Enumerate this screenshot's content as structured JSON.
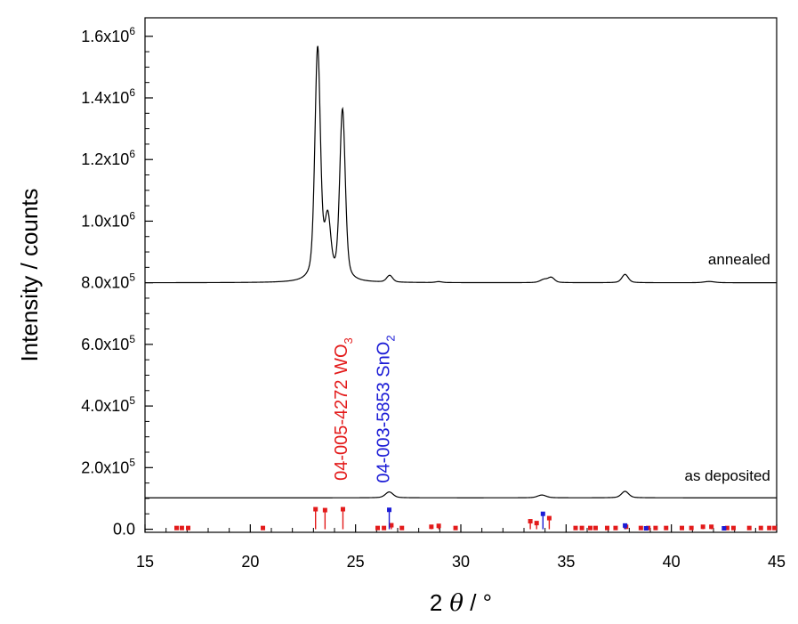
{
  "chart_data": {
    "type": "line",
    "xlabel_prefix": "2",
    "xlabel_symbol": "θ",
    "xlabel_suffix": " / °",
    "ylabel": "Intensity / counts",
    "xlim": [
      15,
      45
    ],
    "ylim": [
      -10000,
      1660000
    ],
    "x_ticks": [
      15,
      20,
      25,
      30,
      35,
      40,
      45
    ],
    "y_ticks": [
      {
        "value": 0,
        "label": "0.0"
      },
      {
        "value": 200000,
        "mant": "2.0x10",
        "exp": "5"
      },
      {
        "value": 400000,
        "mant": "4.0x10",
        "exp": "5"
      },
      {
        "value": 600000,
        "mant": "6.0x10",
        "exp": "5"
      },
      {
        "value": 800000,
        "mant": "8.0x10",
        "exp": "5"
      },
      {
        "value": 1000000,
        "mant": "1.0x10",
        "exp": "6"
      },
      {
        "value": 1200000,
        "mant": "1.2x10",
        "exp": "6"
      },
      {
        "value": 1400000,
        "mant": "1.4x10",
        "exp": "6"
      },
      {
        "value": 1600000,
        "mant": "1.6x10",
        "exp": "6"
      }
    ],
    "series": [
      {
        "name": "annealed",
        "color": "#000000",
        "baseline": 800000,
        "label_x": 44.7,
        "label_y": 860000,
        "peaks": [
          {
            "x": 23.2,
            "height": 755000,
            "width": 0.13
          },
          {
            "x": 23.68,
            "height": 190000,
            "width": 0.14
          },
          {
            "x": 24.38,
            "height": 555000,
            "width": 0.13
          },
          {
            "x": 26.62,
            "height": 22000,
            "width": 0.14
          },
          {
            "x": 28.95,
            "height": 3000,
            "width": 0.15
          },
          {
            "x": 33.95,
            "height": 10000,
            "width": 0.18
          },
          {
            "x": 34.3,
            "height": 16000,
            "width": 0.15
          },
          {
            "x": 37.8,
            "height": 27000,
            "width": 0.15
          },
          {
            "x": 41.8,
            "height": 4000,
            "width": 0.25
          }
        ]
      },
      {
        "name": "as deposited",
        "color": "#000000",
        "baseline": 102000,
        "label_x": 44.7,
        "label_y": 158000,
        "peaks": [
          {
            "x": 26.6,
            "height": 19000,
            "width": 0.18
          },
          {
            "x": 33.85,
            "height": 9000,
            "width": 0.2
          },
          {
            "x": 37.8,
            "height": 21000,
            "width": 0.17
          }
        ]
      }
    ],
    "references": [
      {
        "label_main": "04-005-4272 WO",
        "label_sub": "3",
        "color": "#e31b1b",
        "label_x": 24.6,
        "label_y": 390000,
        "sticks": [
          {
            "x": 16.5,
            "y": 4000
          },
          {
            "x": 16.75,
            "y": 4000
          },
          {
            "x": 17.05,
            "y": 4000
          },
          {
            "x": 20.6,
            "y": 4000
          },
          {
            "x": 23.1,
            "y": 65000
          },
          {
            "x": 23.55,
            "y": 62000
          },
          {
            "x": 24.4,
            "y": 65000
          },
          {
            "x": 26.05,
            "y": 4000
          },
          {
            "x": 26.35,
            "y": 4000
          },
          {
            "x": 26.7,
            "y": 13000
          },
          {
            "x": 27.2,
            "y": 4000
          },
          {
            "x": 28.6,
            "y": 8000
          },
          {
            "x": 28.95,
            "y": 11000
          },
          {
            "x": 29.75,
            "y": 4000
          },
          {
            "x": 33.3,
            "y": 26000
          },
          {
            "x": 33.6,
            "y": 20000
          },
          {
            "x": 34.2,
            "y": 36000
          },
          {
            "x": 35.45,
            "y": 4000
          },
          {
            "x": 35.75,
            "y": 4000
          },
          {
            "x": 36.15,
            "y": 4000
          },
          {
            "x": 36.4,
            "y": 4000
          },
          {
            "x": 36.95,
            "y": 4000
          },
          {
            "x": 37.35,
            "y": 4000
          },
          {
            "x": 37.85,
            "y": 8000
          },
          {
            "x": 38.55,
            "y": 4000
          },
          {
            "x": 38.9,
            "y": 4000
          },
          {
            "x": 39.25,
            "y": 4000
          },
          {
            "x": 39.75,
            "y": 4000
          },
          {
            "x": 40.5,
            "y": 4000
          },
          {
            "x": 40.95,
            "y": 4000
          },
          {
            "x": 41.5,
            "y": 8000
          },
          {
            "x": 41.9,
            "y": 8000
          },
          {
            "x": 42.65,
            "y": 4000
          },
          {
            "x": 42.95,
            "y": 4000
          },
          {
            "x": 43.7,
            "y": 4000
          },
          {
            "x": 44.25,
            "y": 4000
          },
          {
            "x": 44.65,
            "y": 4000
          },
          {
            "x": 44.9,
            "y": 4000
          }
        ]
      },
      {
        "label_main": "04-003-5853 SnO",
        "label_sub": "2",
        "color": "#1c1cd6",
        "label_x": 26.6,
        "label_y": 390000,
        "sticks": [
          {
            "x": 26.6,
            "y": 63000
          },
          {
            "x": 33.9,
            "y": 50000
          },
          {
            "x": 37.8,
            "y": 12000
          },
          {
            "x": 38.8,
            "y": 3000
          },
          {
            "x": 42.5,
            "y": 3000
          }
        ]
      }
    ]
  }
}
